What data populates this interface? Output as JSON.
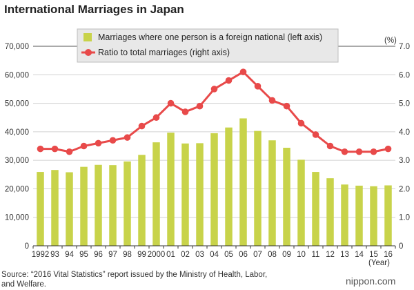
{
  "chart_data": {
    "type": "bar",
    "title": "International Marriages in Japan",
    "categories": [
      "1992",
      "93",
      "94",
      "95",
      "96",
      "97",
      "98",
      "99",
      "2000",
      "01",
      "02",
      "03",
      "04",
      "05",
      "06",
      "07",
      "08",
      "09",
      "10",
      "11",
      "12",
      "13",
      "14",
      "15",
      "16"
    ],
    "series": [
      {
        "name": "Marriages where one person is a foreign national (left axis)",
        "type": "bar",
        "axis": "left",
        "color": "#c8d34a",
        "values": [
          25900,
          26600,
          25800,
          27700,
          28400,
          28300,
          29600,
          31900,
          36300,
          39700,
          35900,
          36000,
          39500,
          41500,
          44700,
          40300,
          37000,
          34400,
          30200,
          25900,
          23700,
          21500,
          21100,
          20900,
          21200
        ]
      },
      {
        "name": "Ratio to total marriages (right axis)",
        "type": "line",
        "axis": "right",
        "color": "#e84a4a",
        "values": [
          3.4,
          3.4,
          3.3,
          3.5,
          3.6,
          3.7,
          3.8,
          4.2,
          4.5,
          5.0,
          4.7,
          4.9,
          5.5,
          5.8,
          6.1,
          5.6,
          5.1,
          4.9,
          4.3,
          3.9,
          3.5,
          3.3,
          3.3,
          3.3,
          3.4
        ]
      }
    ],
    "left_axis": {
      "min": 0,
      "max": 70000,
      "step": 10000,
      "tick_labels": [
        "0",
        "10,000",
        "20,000",
        "30,000",
        "40,000",
        "50,000",
        "60,000",
        "70,000"
      ]
    },
    "right_axis": {
      "min": 0,
      "max": 7.0,
      "step": 1.0,
      "label": "(%)",
      "tick_labels": [
        "0",
        "1.0",
        "2.0",
        "3.0",
        "4.0",
        "5.0",
        "6.0",
        "7.0"
      ]
    },
    "x_axis_label": "(Year)",
    "legend_position": "top-center"
  },
  "source": {
    "line1": "Source: “2016 Vital Statistics” report issued by the Ministry of Health, Labor,",
    "line2": "and Welfare."
  },
  "brand": "nippon.com"
}
